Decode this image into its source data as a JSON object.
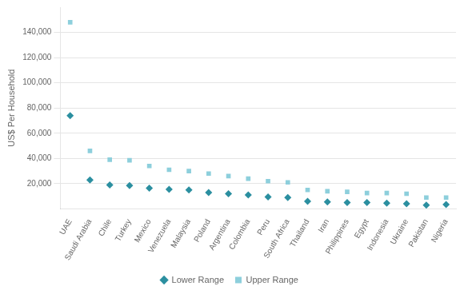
{
  "chart_data": {
    "type": "scatter",
    "categories": [
      "UAE",
      "Saudi Arabia",
      "Chile",
      "Turkey",
      "Mexico",
      "Venezuela",
      "Malaysia",
      "Poland",
      "Argentina",
      "Colombia",
      "Peru",
      "South Africa",
      "Thailand",
      "Iran",
      "Philippines",
      "Egypt",
      "Indonesia",
      "Ukraine",
      "Pakistan",
      "Nigeria"
    ],
    "series": [
      {
        "name": "Lower Range",
        "color": "#2b8fa0",
        "marker": "diamond",
        "values": [
          74000,
          23000,
          19000,
          18500,
          16500,
          15500,
          15000,
          13000,
          12000,
          11000,
          9500,
          9000,
          6000,
          5500,
          5000,
          5000,
          4500,
          4000,
          3000,
          3500
        ]
      },
      {
        "name": "Upper Range",
        "color": "#8dcfdc",
        "marker": "square",
        "values": [
          148000,
          46000,
          39000,
          38500,
          34000,
          31000,
          30000,
          28000,
          26000,
          24000,
          22000,
          21000,
          15000,
          14000,
          13500,
          12500,
          12500,
          12000,
          9000,
          9000
        ]
      }
    ],
    "ylabel": "US$ Per Household",
    "ylim": [
      0,
      160000
    ],
    "yticks": [
      {
        "value": 20000,
        "label": "20,000"
      },
      {
        "value": 40000,
        "label": "40,000"
      },
      {
        "value": 60000,
        "label": "60,000"
      },
      {
        "value": 80000,
        "label": "80,000"
      },
      {
        "value": 100000,
        "label": "100,000"
      },
      {
        "value": 120000,
        "label": "120,000"
      },
      {
        "value": 140000,
        "label": "140,000"
      }
    ],
    "grid": true,
    "legend": "bottom"
  }
}
